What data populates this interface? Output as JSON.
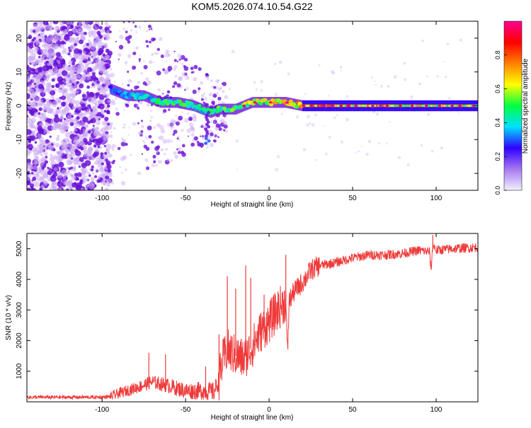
{
  "title": "KOM5.2026.074.10.54.G22",
  "colors": {
    "signal_line": "#ef3a3a",
    "axis": "#000000",
    "speckle_dark": "#6a10d8",
    "speckle_light": "#caa8f2"
  },
  "chart_data": [
    {
      "type": "heatmap",
      "xlabel": "Height of straight line (km)",
      "ylabel": "Frequency (Hz)",
      "xlim": [
        -145,
        125
      ],
      "ylim": [
        -25,
        25
      ],
      "xticks": [
        -100,
        -50,
        0,
        50,
        100
      ],
      "yticks": [
        -20,
        -10,
        0,
        10,
        20
      ],
      "colorbar": {
        "label": "Normalized spectral amplitude",
        "range": [
          0,
          1
        ],
        "ticks": [
          "0.0",
          "0.2",
          "0.4",
          "0.6",
          "0.8"
        ],
        "colormap": [
          "#f2f0ff",
          "#a678ef",
          "#3000ff",
          "#00e0ff",
          "#00ff40",
          "#ffff00",
          "#ff8000",
          "#ff0000",
          "#ff0090"
        ]
      },
      "trace": {
        "x": [
          -95,
          -85,
          -75,
          -65,
          -55,
          -45,
          -40,
          -35,
          -30,
          -20,
          -10,
          0,
          10,
          20,
          40,
          60,
          80,
          100,
          125
        ],
        "frequency": [
          5,
          3,
          3,
          1,
          1,
          0,
          -1,
          -2,
          -1,
          -1,
          1,
          1,
          1,
          0,
          0,
          0,
          0,
          0,
          0
        ],
        "amplitude": [
          0.3,
          0.35,
          0.4,
          0.45,
          0.5,
          0.5,
          0.4,
          0.45,
          0.5,
          0.55,
          0.6,
          0.65,
          0.7,
          0.75,
          0.75,
          0.72,
          0.7,
          0.68,
          0.65
        ]
      }
    },
    {
      "type": "line",
      "xlabel": "Height of straight line (km)",
      "ylabel": "SNR (10 * v/v)",
      "xlim": [
        -145,
        125
      ],
      "ylim": [
        0,
        5500
      ],
      "xticks": [
        -100,
        -50,
        0,
        50,
        100
      ],
      "yticks": [
        1000,
        2000,
        3000,
        4000,
        5000
      ],
      "series": [
        {
          "name": "SNR",
          "x": [
            -145,
            -100,
            -95,
            -90,
            -80,
            -70,
            -60,
            -50,
            -40,
            -33,
            -30,
            -28,
            -25,
            -20,
            -15,
            -10,
            -5,
            0,
            5,
            10,
            11,
            12,
            15,
            20,
            25,
            30,
            40,
            50,
            60,
            70,
            80,
            90,
            96,
            97,
            98,
            100,
            110,
            125
          ],
          "y": [
            150,
            150,
            170,
            280,
            450,
            650,
            520,
            360,
            360,
            330,
            720,
            1300,
            1700,
            1500,
            1400,
            1800,
            2300,
            2600,
            3000,
            3300,
            1500,
            3300,
            3600,
            3900,
            4300,
            4450,
            4550,
            4700,
            4800,
            4800,
            4850,
            4950,
            4900,
            4300,
            5150,
            4950,
            5000,
            5050
          ],
          "spikes": [
            {
              "x": -72,
              "y": 1600
            },
            {
              "x": -62,
              "y": 1550
            },
            {
              "x": -38,
              "y": 1150
            },
            {
              "x": -30,
              "y": 2200
            },
            {
              "x": -25,
              "y": 4100
            },
            {
              "x": -20,
              "y": 3700
            },
            {
              "x": -14,
              "y": 4450
            },
            {
              "x": -11,
              "y": 4050
            },
            {
              "x": -3,
              "y": 3500
            },
            {
              "x": 10,
              "y": 4800
            },
            {
              "x": 98,
              "y": 5450
            }
          ]
        }
      ]
    }
  ]
}
